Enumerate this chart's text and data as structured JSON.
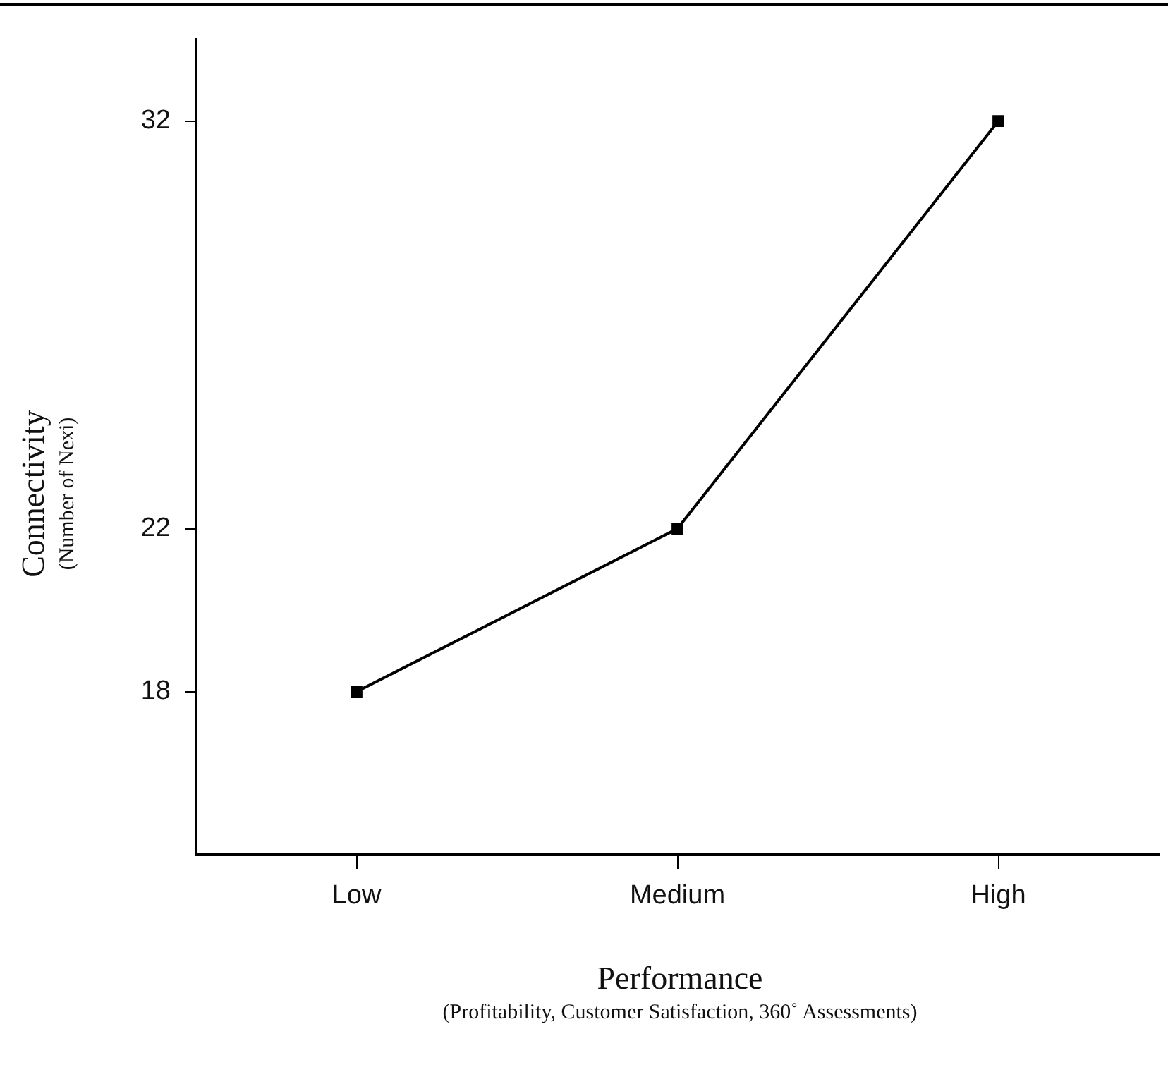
{
  "chart_data": {
    "type": "line",
    "xlabel": "Performance\n(Profitability, Customer Satisfaction, 360˚ Assessments)",
    "ylabel": "Connectivity\n(Number of Nexi)",
    "categories": [
      "Low",
      "Medium",
      "High"
    ],
    "series": [
      {
        "color": "#000000",
        "values": [
          18,
          22,
          32
        ]
      }
    ],
    "ylim": [
      14,
      34
    ],
    "yticks": [
      18,
      22,
      32
    ],
    "grid": false,
    "legend": false,
    "marker": "square",
    "line_style": "solid"
  }
}
